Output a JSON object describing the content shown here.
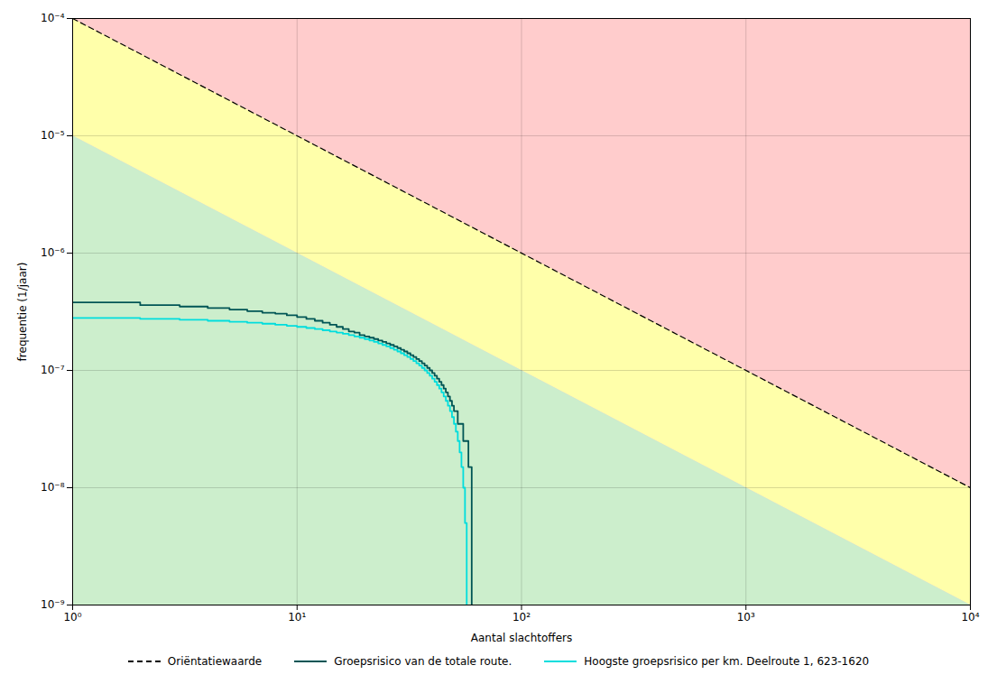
{
  "chart_data": {
    "type": "line",
    "xlabel": "Aantal slachtoffers",
    "ylabel": "frequentie (1/jaar)",
    "log": true,
    "xlim": [
      1,
      10000
    ],
    "ylim": [
      1e-09,
      0.0001
    ],
    "xticks": [
      {
        "value": 1,
        "label": "10⁰"
      },
      {
        "value": 10,
        "label": "10¹"
      },
      {
        "value": 100,
        "label": "10²"
      },
      {
        "value": 1000,
        "label": "10³"
      },
      {
        "value": 10000,
        "label": "10⁴"
      }
    ],
    "yticks": [
      {
        "value": 1e-09,
        "label": "10⁻⁹"
      },
      {
        "value": 1e-08,
        "label": "10⁻⁸"
      },
      {
        "value": 1e-07,
        "label": "10⁻⁷"
      },
      {
        "value": 1e-06,
        "label": "10⁻⁶"
      },
      {
        "value": 1e-05,
        "label": "10⁻⁵"
      },
      {
        "value": 0.0001,
        "label": "10⁻⁴"
      }
    ],
    "grid": true,
    "legend": "bottom",
    "zones": [
      {
        "color": "#ffcccc",
        "x": [
          1,
          10000
        ],
        "y1": [
          1e-09,
          1e-09
        ],
        "y2": [
          0.0001,
          0.0001
        ]
      },
      {
        "color": "#ffffaa",
        "x": [
          1,
          10000
        ],
        "y1": [
          1e-05,
          1e-09
        ],
        "y2": [
          0.0001,
          1e-08
        ]
      },
      {
        "color": "#cceecc",
        "x": [
          1,
          10000
        ],
        "y1": [
          1e-09,
          1e-09
        ],
        "y2": [
          1e-05,
          1e-09
        ]
      }
    ],
    "series": [
      {
        "name": "Oriëntatiewaarde",
        "type": "line",
        "color": "#000000",
        "line_style": "dashed",
        "x": [
          1,
          10000
        ],
        "values": [
          0.0001,
          1e-08
        ]
      },
      {
        "name": "Groepsrisico van de totale route.",
        "type": "step",
        "color": "#005555",
        "line_style": "solid",
        "x": [
          1,
          2,
          3,
          4,
          5,
          6,
          7,
          8,
          9,
          10,
          11,
          12,
          13,
          14,
          15,
          16,
          17,
          18,
          19,
          20,
          21,
          22,
          23,
          24,
          25,
          26,
          27,
          28,
          29,
          30,
          31,
          32,
          33,
          34,
          35,
          36,
          37,
          38,
          39,
          40,
          41,
          42,
          43,
          44,
          45,
          46,
          47,
          48,
          49,
          50,
          52,
          55,
          58,
          60
        ],
        "values": [
          3.8e-07,
          3.6e-07,
          3.5e-07,
          3.4e-07,
          3.3e-07,
          3.2e-07,
          3.1e-07,
          3.05e-07,
          2.95e-07,
          2.85e-07,
          2.75e-07,
          2.65e-07,
          2.55e-07,
          2.45e-07,
          2.35e-07,
          2.25e-07,
          2.15e-07,
          2.1e-07,
          2e-07,
          1.95e-07,
          1.9e-07,
          1.85e-07,
          1.8e-07,
          1.75e-07,
          1.7e-07,
          1.65e-07,
          1.6e-07,
          1.55e-07,
          1.5e-07,
          1.45e-07,
          1.4e-07,
          1.35e-07,
          1.3e-07,
          1.25e-07,
          1.2e-07,
          1.15e-07,
          1.1e-07,
          1.05e-07,
          1e-07,
          9.5e-08,
          9e-08,
          8.5e-08,
          8e-08,
          7.5e-08,
          7e-08,
          6.5e-08,
          6e-08,
          5.5e-08,
          5e-08,
          4.5e-08,
          3.5e-08,
          2.5e-08,
          1.5e-08,
          1e-09
        ]
      },
      {
        "name": "Hoogste groepsrisico per km. Deelroute 1, 623-1620",
        "type": "step",
        "color": "#00dddd",
        "line_style": "solid",
        "x": [
          1,
          2,
          3,
          4,
          5,
          6,
          7,
          8,
          9,
          10,
          11,
          12,
          13,
          14,
          15,
          16,
          17,
          18,
          19,
          20,
          21,
          22,
          23,
          24,
          25,
          26,
          27,
          28,
          29,
          30,
          31,
          32,
          33,
          34,
          35,
          36,
          37,
          38,
          39,
          40,
          41,
          42,
          43,
          44,
          45,
          46,
          47,
          48,
          49,
          50,
          51,
          52,
          53,
          54,
          55,
          56,
          57
        ],
        "values": [
          2.8e-07,
          2.75e-07,
          2.7e-07,
          2.65e-07,
          2.6e-07,
          2.55e-07,
          2.5e-07,
          2.45e-07,
          2.4e-07,
          2.35e-07,
          2.3e-07,
          2.25e-07,
          2.2e-07,
          2.15e-07,
          2.1e-07,
          2.05e-07,
          2e-07,
          1.95e-07,
          1.9e-07,
          1.85e-07,
          1.8e-07,
          1.75e-07,
          1.7e-07,
          1.65e-07,
          1.6e-07,
          1.55e-07,
          1.5e-07,
          1.45e-07,
          1.4e-07,
          1.35e-07,
          1.3e-07,
          1.25e-07,
          1.2e-07,
          1.15e-07,
          1.1e-07,
          1.05e-07,
          1e-07,
          9.5e-08,
          9e-08,
          8.5e-08,
          8e-08,
          7.5e-08,
          7e-08,
          6.5e-08,
          6e-08,
          5.5e-08,
          5e-08,
          4.5e-08,
          4e-08,
          3.5e-08,
          3e-08,
          2.5e-08,
          2e-08,
          1.5e-08,
          1e-08,
          5e-09,
          1e-09
        ]
      }
    ]
  }
}
